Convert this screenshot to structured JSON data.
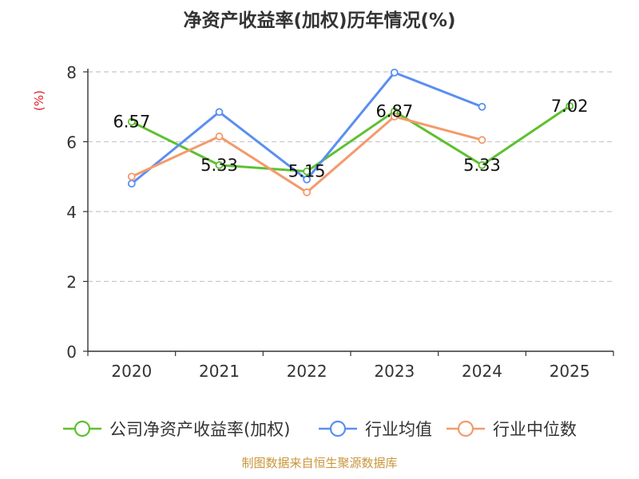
{
  "chart_data": {
    "type": "line",
    "title": "净资产收益率(加权)历年情况(%)",
    "ylabel": "(%)",
    "xlabel": "",
    "categories": [
      "2020",
      "2021",
      "2022",
      "2023",
      "2024",
      "2025"
    ],
    "ylim": [
      0,
      8
    ],
    "yticks": [
      0,
      2,
      4,
      6,
      8
    ],
    "grid": true,
    "legend_position": "bottom",
    "series": [
      {
        "name": "公司净资产收益率(加权)",
        "color": "#5cc12f",
        "values": [
          6.57,
          5.33,
          5.15,
          6.87,
          5.33,
          7.02
        ],
        "labels": [
          "6.57",
          "5.33",
          "5.15",
          "6.87",
          "5.33",
          "7.02"
        ]
      },
      {
        "name": "行业均值",
        "color": "#5b8ff0",
        "values": [
          4.8,
          6.85,
          4.92,
          7.98,
          7.0,
          null
        ]
      },
      {
        "name": "行业中位数",
        "color": "#f49a6c",
        "values": [
          5.0,
          6.15,
          4.55,
          6.72,
          6.05,
          null
        ]
      }
    ]
  },
  "source": "制图数据来自恒生聚源数据库"
}
